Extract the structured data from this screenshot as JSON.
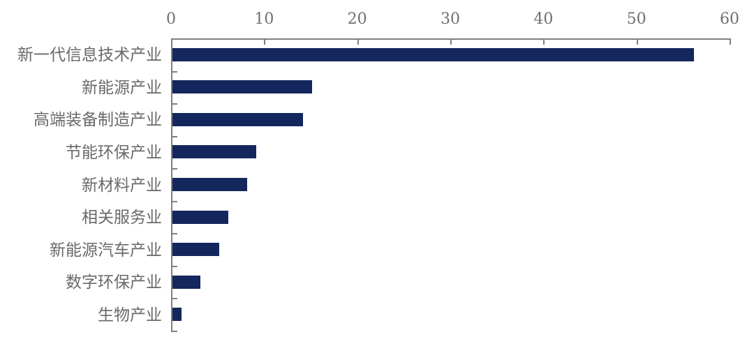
{
  "chart_data": {
    "type": "bar",
    "orientation": "horizontal",
    "title": "",
    "xlabel": "",
    "ylabel": "",
    "categories": [
      "新一代信息技术产业",
      "新能源产业",
      "高端装备制造产业",
      "节能环保产业",
      "新材料产业",
      "相关服务业",
      "新能源汽车产业",
      "数字环保产业",
      "生物产业"
    ],
    "values": [
      56,
      15,
      14,
      9,
      8,
      6,
      5,
      3,
      1
    ],
    "x_ticks": [
      0,
      10,
      20,
      30,
      40,
      50,
      60
    ],
    "xlim": [
      0,
      60
    ],
    "grid": false,
    "legend": false,
    "axis_position": "top",
    "colors": {
      "bar": "#13275c",
      "axis": "#7f7f7f",
      "tick_label": "#6f6f6f",
      "category_label": "#696969",
      "background": "#ffffff"
    }
  }
}
